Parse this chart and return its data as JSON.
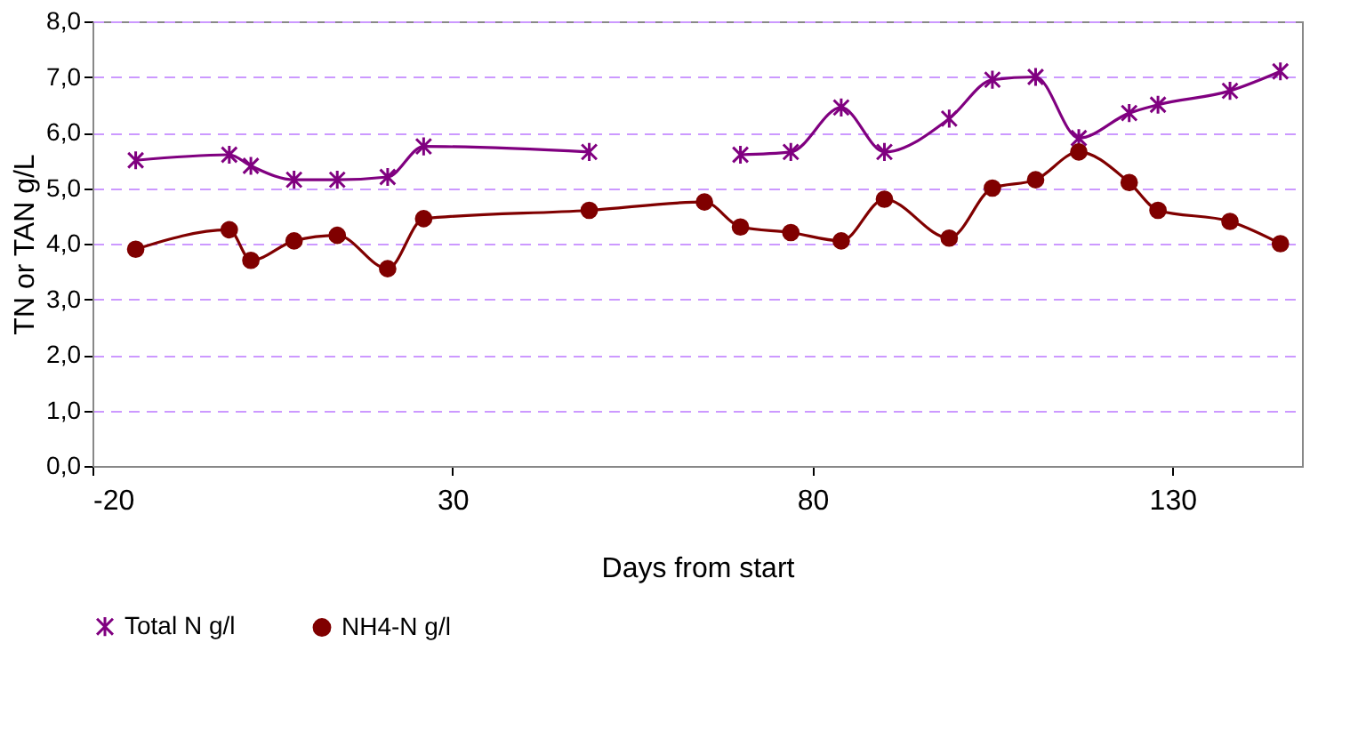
{
  "chart_data": {
    "type": "line",
    "xlabel": "Days from start",
    "ylabel": "TN or TAN g/L",
    "x": [
      -14,
      -1,
      2,
      8,
      14,
      21,
      26,
      49,
      65,
      70,
      77,
      84,
      90,
      99,
      105,
      111,
      117,
      124,
      128,
      138,
      145
    ],
    "series": [
      {
        "name": "Total N g/l",
        "color": "#800080",
        "marker": "cross",
        "values": [
          5.5,
          5.6,
          5.4,
          5.15,
          5.15,
          5.2,
          5.75,
          5.65,
          null,
          5.6,
          5.65,
          6.45,
          5.65,
          6.25,
          6.95,
          7.0,
          5.9,
          6.35,
          6.5,
          6.75,
          7.1
        ]
      },
      {
        "name": "NH4-N g/l",
        "color": "#800000",
        "marker": "circle",
        "values": [
          3.9,
          4.25,
          3.7,
          4.05,
          4.15,
          3.55,
          4.45,
          4.6,
          4.75,
          4.3,
          4.2,
          4.05,
          4.8,
          4.1,
          5.0,
          5.15,
          5.65,
          5.1,
          4.6,
          4.4,
          4.0
        ]
      }
    ],
    "xlim": [
      -20,
      148
    ],
    "xticks": [
      -20,
      30,
      80,
      130
    ],
    "ylim": [
      0,
      8
    ],
    "yticks": [
      {
        "value": 0,
        "label": "0,0"
      },
      {
        "value": 1,
        "label": "1,0"
      },
      {
        "value": 2,
        "label": "2,0"
      },
      {
        "value": 3,
        "label": "3,0"
      },
      {
        "value": 4,
        "label": "4,0"
      },
      {
        "value": 5,
        "label": "5,0"
      },
      {
        "value": 6,
        "label": "6,0"
      },
      {
        "value": 7,
        "label": "7,0"
      },
      {
        "value": 8,
        "label": "8,0"
      }
    ],
    "grid": "y",
    "legend": "bottom",
    "line_style": "solid"
  }
}
